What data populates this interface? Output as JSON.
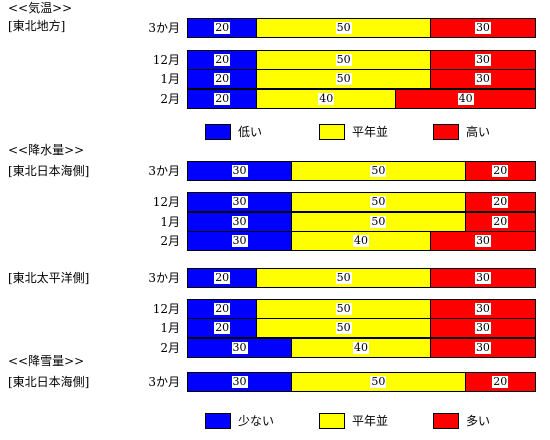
{
  "colors": {
    "below": "#0000ff",
    "normal": "#ffff00",
    "above": "#ff0000"
  },
  "chart_data": {
    "type": "bar",
    "stacked": true,
    "unit": "",
    "groups": [
      {
        "section": "<<気温>>",
        "region": "[東北地方]",
        "rows": [
          {
            "period": "3か月",
            "values": [
              20,
              50,
              30
            ]
          },
          {
            "period": "12月",
            "values": [
              20,
              50,
              30
            ]
          },
          {
            "period": "1月",
            "values": [
              20,
              50,
              30
            ]
          },
          {
            "period": "2月",
            "values": [
              20,
              40,
              40
            ]
          }
        ]
      },
      {
        "section": "<<降水量>>",
        "region": "[東北日本海側]",
        "rows": [
          {
            "period": "3か月",
            "values": [
              30,
              50,
              20
            ]
          },
          {
            "period": "12月",
            "values": [
              30,
              50,
              20
            ]
          },
          {
            "period": "1月",
            "values": [
              30,
              50,
              20
            ]
          },
          {
            "period": "2月",
            "values": [
              30,
              40,
              30
            ]
          }
        ]
      },
      {
        "section": "",
        "region": "[東北太平洋側]",
        "rows": [
          {
            "period": "3か月",
            "values": [
              20,
              50,
              30
            ]
          },
          {
            "period": "12月",
            "values": [
              20,
              50,
              30
            ]
          },
          {
            "period": "1月",
            "values": [
              20,
              50,
              30
            ]
          },
          {
            "period": "2月",
            "values": [
              30,
              40,
              30
            ]
          }
        ]
      },
      {
        "section": "<<降雪量>>",
        "region": "[東北日本海側]",
        "rows": [
          {
            "period": "3か月",
            "values": [
              30,
              50,
              20
            ]
          }
        ]
      }
    ],
    "legends": [
      {
        "below": "低い",
        "normal": "平年並",
        "above": "高い"
      },
      {
        "below": "少ない",
        "normal": "平年並",
        "above": "多い"
      }
    ]
  }
}
